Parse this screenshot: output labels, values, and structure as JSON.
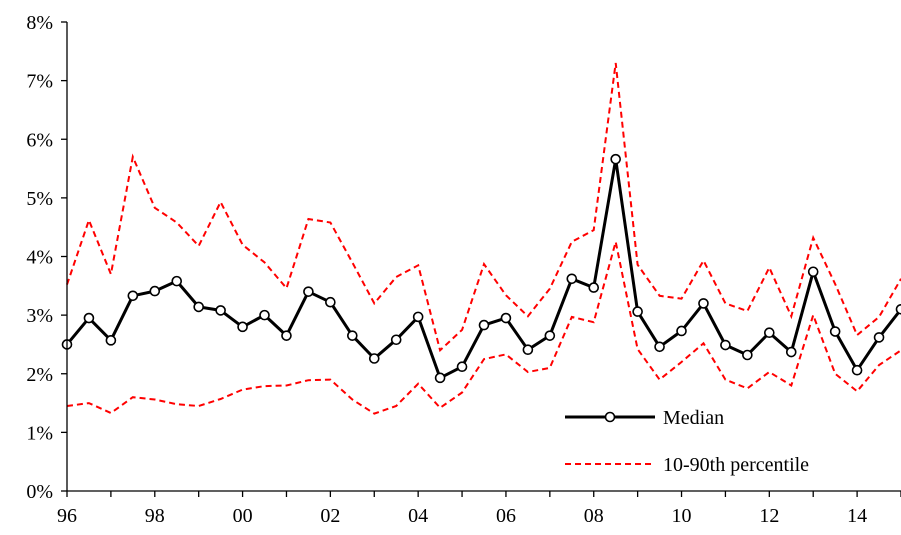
{
  "chart_data": {
    "type": "line",
    "title": "",
    "xlabel": "",
    "ylabel": "",
    "x": [
      1996.0,
      1996.5,
      1997.0,
      1997.5,
      1998.0,
      1998.5,
      1999.0,
      1999.5,
      2000.0,
      2000.5,
      2001.0,
      2001.5,
      2002.0,
      2002.5,
      2003.0,
      2003.5,
      2004.0,
      2004.5,
      2005.0,
      2005.5,
      2006.0,
      2006.5,
      2007.0,
      2007.5,
      2008.0,
      2008.5,
      2009.0,
      2009.5,
      2010.0,
      2010.5,
      2011.0,
      2011.5,
      2012.0,
      2012.5,
      2013.0,
      2013.5,
      2014.0,
      2014.5,
      2015.0
    ],
    "xlim": [
      1996,
      2015
    ],
    "ylim": [
      0,
      8
    ],
    "x_ticks": [
      1996,
      1998,
      2000,
      2002,
      2004,
      2006,
      2008,
      2010,
      2012,
      2014
    ],
    "x_tick_labels": [
      "96",
      "98",
      "00",
      "02",
      "04",
      "06",
      "08",
      "10",
      "12",
      "14"
    ],
    "y_ticks": [
      0,
      1,
      2,
      3,
      4,
      5,
      6,
      7,
      8
    ],
    "y_tick_labels": [
      "0%",
      "1%",
      "2%",
      "3%",
      "4%",
      "5%",
      "6%",
      "7%",
      "8%"
    ],
    "grid": false,
    "legend_position": "bottom-right",
    "series": [
      {
        "name": "Median",
        "color": "#000000",
        "style": "solid-with-circle-markers",
        "values": [
          2.5,
          2.95,
          2.57,
          3.33,
          3.41,
          3.58,
          3.14,
          3.08,
          2.8,
          3.0,
          2.65,
          3.4,
          3.22,
          2.65,
          2.26,
          2.58,
          2.97,
          1.93,
          2.12,
          2.83,
          2.95,
          2.41,
          2.65,
          3.62,
          3.47,
          5.66,
          3.06,
          2.46,
          2.73,
          3.2,
          2.49,
          2.32,
          2.7,
          2.37,
          3.74,
          2.72,
          2.06,
          2.62,
          3.1
        ]
      },
      {
        "name": "10-90th percentile",
        "color": "#ff0000",
        "style": "dashed",
        "values": [
          3.52,
          4.62,
          3.7,
          5.7,
          4.83,
          4.58,
          4.18,
          4.93,
          4.2,
          3.9,
          3.46,
          4.64,
          4.58,
          3.9,
          3.2,
          3.65,
          3.85,
          2.4,
          2.75,
          3.87,
          3.34,
          2.98,
          3.45,
          4.25,
          4.45,
          7.3,
          3.86,
          3.33,
          3.28,
          3.93,
          3.2,
          3.07,
          3.81,
          2.98,
          4.32,
          3.53,
          2.66,
          2.97,
          3.62
        ]
      },
      {
        "name": "",
        "color": "#ff0000",
        "style": "dashed",
        "values": [
          1.45,
          1.5,
          1.33,
          1.6,
          1.56,
          1.48,
          1.45,
          1.57,
          1.73,
          1.79,
          1.8,
          1.89,
          1.9,
          1.56,
          1.32,
          1.45,
          1.83,
          1.42,
          1.68,
          2.25,
          2.33,
          2.03,
          2.1,
          2.97,
          2.88,
          4.25,
          2.42,
          1.9,
          2.2,
          2.52,
          1.9,
          1.75,
          2.03,
          1.8,
          3.0,
          2.0,
          1.7,
          2.15,
          2.4
        ]
      }
    ]
  }
}
